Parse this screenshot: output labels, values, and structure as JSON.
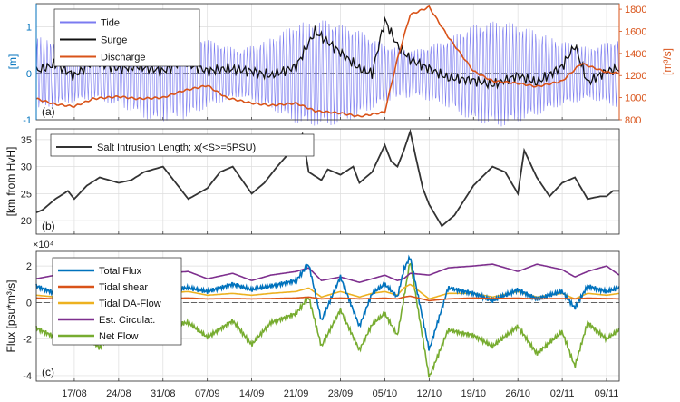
{
  "colors": {
    "tide": "#7b7bf0",
    "black": "#111111",
    "discharge": "#d95319",
    "axis_left_a": "#0072bd",
    "axis_right_a": "#d95319",
    "flux_total": "#0072bd",
    "flux_shear": "#d95319",
    "flux_daflow": "#edb120",
    "flux_circ": "#7e2f8e",
    "flux_net": "#77ac30",
    "grid": "#dddddd"
  },
  "chart_data": [
    {
      "type": "line",
      "panel_label": "(a)",
      "ylabel_left": "[m]",
      "ylabel_right": "[m³/s]",
      "ylim_left": [
        -1,
        1.5
      ],
      "ylim_right": [
        800,
        1850
      ],
      "yticks_left": [
        "-1",
        "0",
        "1"
      ],
      "yticks_right": [
        "800",
        "1000",
        "1200",
        "1400",
        "1600",
        "1800"
      ],
      "legend_position": "top-left",
      "grid": true,
      "series": [
        {
          "name": "Tide",
          "axis": "left",
          "amplitude_envelope": [
            0.8,
            0.65,
            0.55,
            0.75,
            1.05,
            1.0,
            0.7,
            0.5,
            0.75,
            1.1,
            1.15,
            0.95,
            0.6,
            0.5,
            0.7,
            1.05,
            1.15,
            0.95,
            0.7,
            0.55,
            0.75
          ]
        },
        {
          "name": "Surge",
          "axis": "left",
          "x": [
            "11/08",
            "14/08",
            "17/08",
            "20/08",
            "24/08",
            "27/08",
            "31/08",
            "03/09",
            "07/09",
            "10/09",
            "14/09",
            "17/09",
            "21/09",
            "24/09",
            "28/09",
            "01/10",
            "03/10",
            "05/10",
            "07/10",
            "09/10",
            "12/10",
            "15/10",
            "19/10",
            "22/10",
            "26/10",
            "29/10",
            "02/11",
            "04/11",
            "06/11",
            "09/11",
            "11/11"
          ],
          "values": [
            0.05,
            0.2,
            -0.05,
            0.25,
            0.1,
            0.15,
            0.05,
            0.25,
            0.05,
            0.1,
            0.05,
            -0.05,
            0.15,
            0.9,
            0.45,
            0.1,
            0.0,
            1.15,
            0.6,
            0.3,
            0.1,
            -0.1,
            -0.15,
            -0.25,
            -0.05,
            -0.2,
            0.15,
            0.6,
            -0.2,
            0.05,
            0.1
          ]
        },
        {
          "name": "Discharge",
          "axis": "right",
          "x": [
            "11/08",
            "14/08",
            "17/08",
            "20/08",
            "24/08",
            "27/08",
            "31/08",
            "03/09",
            "07/09",
            "10/09",
            "14/09",
            "17/09",
            "21/09",
            "24/09",
            "28/09",
            "01/10",
            "05/10",
            "07/10",
            "09/10",
            "12/10",
            "15/10",
            "19/10",
            "22/10",
            "26/10",
            "29/10",
            "02/11",
            "05/11",
            "09/11",
            "11/11"
          ],
          "values": [
            990,
            940,
            920,
            990,
            1010,
            990,
            1000,
            1060,
            1110,
            1000,
            950,
            930,
            950,
            880,
            860,
            830,
            870,
            1350,
            1750,
            1820,
            1550,
            1240,
            1150,
            1130,
            1100,
            1150,
            1310,
            1230,
            1220
          ]
        }
      ]
    },
    {
      "type": "line",
      "panel_label": "(b)",
      "ylabel": "[km from HvH]",
      "ylim": [
        17.5,
        37
      ],
      "yticks": [
        "20",
        "25",
        "30",
        "35"
      ],
      "legend_position": "top-left",
      "grid": true,
      "series": [
        {
          "name": "Salt Intrusion Length; x(<S>=5PSU)",
          "x": [
            "11/08",
            "12/08",
            "14/08",
            "16/08",
            "17/08",
            "19/08",
            "21/08",
            "24/08",
            "26/08",
            "28/08",
            "31/08",
            "02/09",
            "04/09",
            "07/09",
            "09/09",
            "11/09",
            "14/09",
            "16/09",
            "18/09",
            "21/09",
            "22/09",
            "23/09",
            "25/09",
            "26/09",
            "28/09",
            "30/09",
            "01/10",
            "03/10",
            "05/10",
            "06/10",
            "07/10",
            "08/10",
            "09/10",
            "11/10",
            "12/10",
            "14/10",
            "16/10",
            "19/10",
            "22/10",
            "24/10",
            "26/10",
            "27/10",
            "29/10",
            "31/10",
            "02/11",
            "04/11",
            "06/11",
            "08/11",
            "09/11",
            "10/11"
          ],
          "values": [
            21.5,
            22,
            24,
            25.5,
            24,
            26.5,
            28,
            27,
            27.5,
            29,
            30,
            27,
            24,
            26,
            29,
            30,
            25,
            27,
            30,
            34,
            36,
            29,
            27.5,
            29.5,
            28.5,
            30,
            27,
            29,
            34,
            31,
            30,
            33,
            36.5,
            26,
            23,
            19,
            21,
            26.5,
            30,
            29,
            25,
            33,
            28,
            24.5,
            27,
            28,
            24,
            24.5,
            24.5,
            25.5
          ]
        }
      ]
    },
    {
      "type": "line",
      "panel_label": "(c)",
      "ylabel": "Flux  [psu*m³/s]",
      "exponent_label": "×10⁴",
      "ylim": [
        -4.3,
        2.8
      ],
      "yticks": [
        "-4",
        "-2",
        "0",
        "2"
      ],
      "legend_position": "top-left",
      "grid": true,
      "x": [
        "11/08",
        "14/08",
        "17/08",
        "21/08",
        "24/08",
        "28/08",
        "31/08",
        "04/09",
        "07/09",
        "11/09",
        "14/09",
        "17/09",
        "21/09",
        "23/09",
        "25/09",
        "28/09",
        "01/10",
        "03/10",
        "05/10",
        "07/10",
        "08/10",
        "09/10",
        "12/10",
        "15/10",
        "19/10",
        "22/10",
        "26/10",
        "29/10",
        "02/11",
        "04/11",
        "06/11",
        "09/11",
        "11/11"
      ],
      "series": [
        {
          "name": "Total Flux",
          "values": [
            0.9,
            0.5,
            0.7,
            0.3,
            0.9,
            0.4,
            0.7,
            0.8,
            0.6,
            1.0,
            0.7,
            0.9,
            1.2,
            2.1,
            -1.0,
            1.4,
            -1.3,
            0.5,
            1.0,
            0.3,
            1.8,
            2.5,
            -2.6,
            0.8,
            0.5,
            0.1,
            0.7,
            0.2,
            0.6,
            -0.3,
            0.9,
            0.6,
            0.8
          ]
        },
        {
          "name": "Tidal shear",
          "values": [
            0.25,
            0.2,
            0.22,
            0.18,
            0.24,
            0.2,
            0.22,
            0.25,
            0.2,
            0.22,
            0.2,
            0.22,
            0.25,
            0.3,
            0.2,
            0.25,
            0.2,
            0.22,
            0.24,
            0.2,
            0.3,
            0.35,
            0.1,
            0.2,
            0.25,
            0.22,
            0.24,
            0.2,
            0.22,
            0.2,
            0.24,
            0.22,
            0.2
          ]
        },
        {
          "name": "Tidal DA-Flow",
          "values": [
            0.4,
            0.3,
            0.5,
            0.3,
            0.5,
            0.3,
            0.5,
            0.6,
            0.4,
            0.5,
            0.4,
            0.5,
            0.6,
            0.8,
            0.3,
            0.6,
            0.3,
            0.5,
            0.6,
            0.4,
            0.8,
            1.0,
            0.2,
            0.5,
            0.5,
            0.3,
            0.6,
            0.3,
            0.5,
            0.2,
            0.5,
            0.4,
            0.5
          ]
        },
        {
          "name": "Est. Circulat.",
          "values": [
            1.3,
            1.5,
            1.6,
            1.3,
            1.8,
            1.5,
            1.6,
            1.7,
            1.3,
            1.6,
            1.2,
            1.5,
            1.7,
            1.9,
            1.2,
            1.4,
            1.1,
            1.3,
            1.5,
            1.2,
            1.3,
            1.6,
            1.5,
            1.9,
            2.0,
            2.1,
            1.7,
            2.1,
            1.8,
            1.4,
            1.7,
            2.0,
            1.5
          ]
        },
        {
          "name": "Net Flow",
          "values": [
            -1.4,
            -1.9,
            -1.2,
            -2.5,
            -1.0,
            -2.0,
            -1.3,
            -1.1,
            -1.9,
            -1.0,
            -2.3,
            -1.1,
            -0.6,
            0.3,
            -2.4,
            -0.4,
            -2.6,
            -1.2,
            -0.6,
            -1.8,
            0.2,
            2.3,
            -4.1,
            -1.5,
            -1.8,
            -2.4,
            -1.3,
            -2.8,
            -1.6,
            -3.5,
            -1.1,
            -2.0,
            -1.5
          ]
        }
      ]
    }
  ],
  "x_axis": {
    "range": [
      "11/08",
      "11/11"
    ],
    "tick_labels": [
      "17/08",
      "24/08",
      "31/08",
      "07/09",
      "14/09",
      "21/09",
      "28/09",
      "05/10",
      "12/10",
      "19/10",
      "26/10",
      "02/11",
      "09/11"
    ]
  }
}
